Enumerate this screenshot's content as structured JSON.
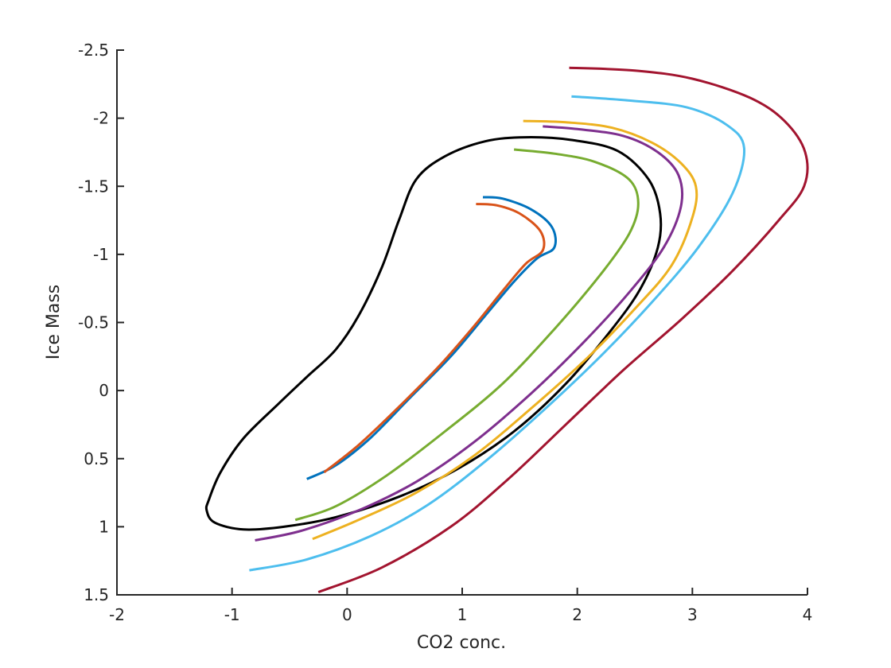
{
  "chart_data": {
    "type": "line",
    "xlabel": "CO2 conc.",
    "ylabel": "Ice Mass",
    "xlim": [
      -2,
      4
    ],
    "ylim": [
      -2.5,
      1.5
    ],
    "y_reversed": true,
    "grid": false,
    "legend": "none",
    "xticks": [
      "-2",
      "-1",
      "0",
      "1",
      "2",
      "3",
      "4"
    ],
    "yticks": [
      "-2.5",
      "-2",
      "-1.5",
      "-1",
      "-0.5",
      "0",
      "0.5",
      "1",
      "1.5"
    ],
    "series": [
      {
        "color": "#000000",
        "closed": true,
        "points": [
          [
            -1.2,
            0.8
          ],
          [
            -1.1,
            0.6
          ],
          [
            -0.9,
            0.35
          ],
          [
            -0.6,
            0.1
          ],
          [
            -0.35,
            -0.1
          ],
          [
            -0.1,
            -0.3
          ],
          [
            0.1,
            -0.55
          ],
          [
            0.3,
            -0.9
          ],
          [
            0.45,
            -1.25
          ],
          [
            0.6,
            -1.55
          ],
          [
            0.85,
            -1.72
          ],
          [
            1.2,
            -1.83
          ],
          [
            1.55,
            -1.86
          ],
          [
            1.95,
            -1.84
          ],
          [
            2.35,
            -1.76
          ],
          [
            2.62,
            -1.55
          ],
          [
            2.72,
            -1.3
          ],
          [
            2.7,
            -1.05
          ],
          [
            2.55,
            -0.75
          ],
          [
            2.3,
            -0.45
          ],
          [
            1.9,
            -0.05
          ],
          [
            1.45,
            0.3
          ],
          [
            0.95,
            0.58
          ],
          [
            0.45,
            0.78
          ],
          [
            -0.1,
            0.93
          ],
          [
            -0.55,
            1.0
          ],
          [
            -0.9,
            1.02
          ],
          [
            -1.15,
            0.97
          ],
          [
            -1.22,
            0.88
          ],
          [
            -1.2,
            0.8
          ]
        ]
      },
      {
        "color": "#0072BD",
        "points": [
          [
            -0.35,
            0.65
          ],
          [
            -0.1,
            0.55
          ],
          [
            0.2,
            0.35
          ],
          [
            0.55,
            0.05
          ],
          [
            0.9,
            -0.25
          ],
          [
            1.2,
            -0.55
          ],
          [
            1.45,
            -0.8
          ],
          [
            1.65,
            -0.97
          ],
          [
            1.8,
            -1.05
          ],
          [
            1.78,
            -1.2
          ],
          [
            1.6,
            -1.33
          ],
          [
            1.35,
            -1.41
          ],
          [
            1.18,
            -1.42
          ]
        ]
      },
      {
        "color": "#D95319",
        "points": [
          [
            -0.2,
            0.6
          ],
          [
            0.1,
            0.4
          ],
          [
            0.45,
            0.12
          ],
          [
            0.8,
            -0.18
          ],
          [
            1.1,
            -0.47
          ],
          [
            1.35,
            -0.73
          ],
          [
            1.55,
            -0.93
          ],
          [
            1.7,
            -1.03
          ],
          [
            1.68,
            -1.17
          ],
          [
            1.5,
            -1.3
          ],
          [
            1.3,
            -1.36
          ],
          [
            1.12,
            -1.37
          ]
        ]
      },
      {
        "color": "#77AC30",
        "points": [
          [
            -0.45,
            0.95
          ],
          [
            -0.1,
            0.85
          ],
          [
            0.35,
            0.62
          ],
          [
            0.85,
            0.3
          ],
          [
            1.35,
            -0.05
          ],
          [
            1.8,
            -0.45
          ],
          [
            2.2,
            -0.85
          ],
          [
            2.45,
            -1.15
          ],
          [
            2.53,
            -1.37
          ],
          [
            2.45,
            -1.55
          ],
          [
            2.15,
            -1.68
          ],
          [
            1.8,
            -1.74
          ],
          [
            1.45,
            -1.77
          ]
        ]
      },
      {
        "color": "#7E2F8E",
        "points": [
          [
            -0.8,
            1.1
          ],
          [
            -0.4,
            1.03
          ],
          [
            0.1,
            0.88
          ],
          [
            0.6,
            0.67
          ],
          [
            1.1,
            0.38
          ],
          [
            1.6,
            0.02
          ],
          [
            2.05,
            -0.35
          ],
          [
            2.45,
            -0.72
          ],
          [
            2.75,
            -1.05
          ],
          [
            2.9,
            -1.35
          ],
          [
            2.88,
            -1.58
          ],
          [
            2.7,
            -1.75
          ],
          [
            2.4,
            -1.87
          ],
          [
            2.0,
            -1.92
          ],
          [
            1.7,
            -1.94
          ]
        ]
      },
      {
        "color": "#EDB120",
        "points": [
          [
            -0.3,
            1.09
          ],
          [
            0.1,
            0.95
          ],
          [
            0.6,
            0.75
          ],
          [
            1.1,
            0.48
          ],
          [
            1.6,
            0.13
          ],
          [
            2.1,
            -0.25
          ],
          [
            2.5,
            -0.6
          ],
          [
            2.82,
            -0.92
          ],
          [
            3.0,
            -1.27
          ],
          [
            3.03,
            -1.5
          ],
          [
            2.9,
            -1.67
          ],
          [
            2.65,
            -1.82
          ],
          [
            2.3,
            -1.93
          ],
          [
            1.9,
            -1.97
          ],
          [
            1.53,
            -1.98
          ]
        ]
      },
      {
        "color": "#4DBEEE",
        "points": [
          [
            -0.85,
            1.32
          ],
          [
            -0.35,
            1.24
          ],
          [
            0.2,
            1.07
          ],
          [
            0.7,
            0.84
          ],
          [
            1.2,
            0.52
          ],
          [
            1.7,
            0.15
          ],
          [
            2.2,
            -0.25
          ],
          [
            2.65,
            -0.65
          ],
          [
            3.05,
            -1.05
          ],
          [
            3.35,
            -1.45
          ],
          [
            3.45,
            -1.78
          ],
          [
            3.3,
            -1.95
          ],
          [
            2.95,
            -2.08
          ],
          [
            2.45,
            -2.13
          ],
          [
            1.95,
            -2.16
          ]
        ]
      },
      {
        "color": "#A2142F",
        "points": [
          [
            -0.25,
            1.48
          ],
          [
            0.3,
            1.3
          ],
          [
            0.9,
            1.0
          ],
          [
            1.4,
            0.65
          ],
          [
            1.9,
            0.25
          ],
          [
            2.4,
            -0.15
          ],
          [
            2.9,
            -0.52
          ],
          [
            3.35,
            -0.88
          ],
          [
            3.75,
            -1.25
          ],
          [
            3.97,
            -1.5
          ],
          [
            3.98,
            -1.75
          ],
          [
            3.8,
            -1.98
          ],
          [
            3.5,
            -2.15
          ],
          [
            3.0,
            -2.29
          ],
          [
            2.5,
            -2.35
          ],
          [
            1.93,
            -2.37
          ]
        ]
      }
    ]
  }
}
